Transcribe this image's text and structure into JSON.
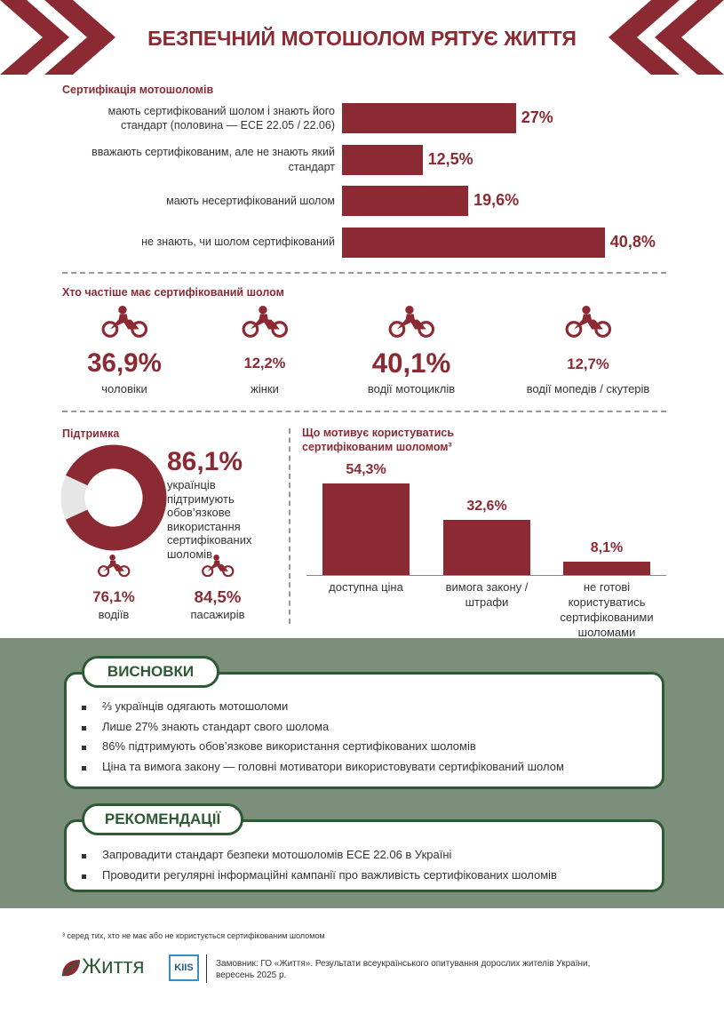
{
  "header": {
    "title": "БЕЗПЕЧНИЙ МОТОШОЛОМ РЯТУЄ ЖИТТЯ"
  },
  "chart_data": [
    {
      "type": "hbar",
      "title": "Сертифікація мотошоломів",
      "categories": [
        "мають сертифікований шолом і знають його стандарт (половина — ECE 22.05 / 22.06)",
        "вважають сертифікованим, але не знають який стандарт",
        "мають несертифікований шолом",
        "не знають, чи шолом сертифікований"
      ],
      "values": [
        27,
        12.5,
        19.6,
        40.8
      ],
      "value_labels": [
        "27%",
        "12,5%",
        "19,6%",
        "40,8%"
      ],
      "color": "#8b2a33"
    },
    {
      "type": "stat",
      "title": "Хто частіше має сертифікований шолом",
      "categories": [
        "чоловіки",
        "жінки",
        "водії мотоциклів",
        "водії мопедів / скутерів"
      ],
      "values": [
        36.9,
        12.2,
        40.1,
        12.7
      ],
      "value_labels": [
        "36,9%",
        "12,2%",
        "40,1%",
        "12,7%"
      ],
      "color": "#8b2a33"
    },
    {
      "type": "donut",
      "title": "Підтримка",
      "values": [
        86.1
      ],
      "value_labels": [
        "86,1%"
      ],
      "text": "українців підтримують обов’язкове використання сертифікованих шоломів",
      "color": "#8b2a33",
      "rest_color": "#e6e6e6"
    },
    {
      "type": "stat",
      "categories": [
        "водіїв",
        "пасажирів"
      ],
      "values": [
        76.1,
        84.5
      ],
      "value_labels": [
        "76,1%",
        "84,5%"
      ],
      "color": "#8b2a33"
    },
    {
      "type": "bar",
      "title": "Що мотивує користуватись сертифікованим шоломом³",
      "categories": [
        "доступна ціна",
        "вимога закону / штрафи",
        "не готові користуватись сертифікованими шоломами"
      ],
      "values": [
        54.3,
        32.6,
        8.1
      ],
      "value_labels": [
        "54,3%",
        "32,6%",
        "8,1%"
      ],
      "color": "#8b2a33"
    }
  ],
  "conclusions": {
    "title": "ВИСНОВКИ",
    "items": [
      "⅔ українців одягають мотошоломи",
      "Лише 27% знають стандарт свого шолома",
      "86% підтримують обов’язкове використання сертифікованих шоломів",
      "Ціна та вимога закону — головні мотиватори використовувати сертифікований шолом"
    ]
  },
  "recommendations": {
    "title": "РЕКОМЕНДАЦІЇ",
    "items": [
      "Запровадити стандарт безпеки мотошоломів ECE 22.06 в Україні",
      "Проводити регулярні інформаційні кампанії про важливість сертифікованих шоломів"
    ]
  },
  "footnote": "³ серед тих, хто не має або не користується сертифікованим шоломом",
  "footer": {
    "logo": "Життя",
    "logo2": "KIIS",
    "text": "Замовник: ГО «Життя». Результати всеукраїнського опитування дорослих жителів України, вересень 2025 р."
  }
}
